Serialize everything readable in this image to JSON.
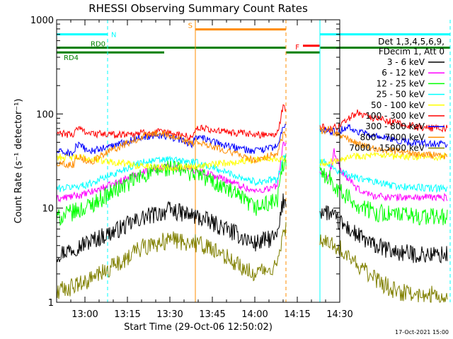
{
  "chart_data": {
    "type": "line",
    "title": "RHESSI Observing Summary Count Rates",
    "xlabel": "Start Time (29-Oct-06 12:50:02)",
    "ylabel": "Count Rate (s⁻¹ detector⁻¹)",
    "yscale": "log",
    "ylim": [
      1,
      1000
    ],
    "xlim": [
      "12:50",
      "14:30"
    ],
    "x_ticks": [
      "13:00",
      "13:15",
      "13:30",
      "13:45",
      "14:00",
      "14:15",
      "14:30"
    ],
    "y_ticks": [
      "1",
      "10",
      "100",
      "1000"
    ],
    "legend_header": [
      "Det 1,3,4,5,6,9,",
      "FDecim 1, Att 0"
    ],
    "legend_position": "right",
    "footer_date": "17-Oct-2021 15:00",
    "x_unit": "minutes after 12:50",
    "gaps": [
      [
        81,
        93
      ],
      [
        139,
        148
      ]
    ],
    "series": [
      {
        "name": "3 - 6 keV",
        "color": "#000000",
        "points": [
          [
            0,
            3.2
          ],
          [
            10,
            4.2
          ],
          [
            20,
            5.6
          ],
          [
            30,
            7.8
          ],
          [
            40,
            9.5
          ],
          [
            50,
            8.0
          ],
          [
            60,
            6.0
          ],
          [
            70,
            4.2
          ],
          [
            78,
            5.0
          ],
          [
            80,
            12.0
          ],
          [
            96,
            9.0
          ],
          [
            100,
            7.0
          ],
          [
            106,
            5.2
          ],
          [
            112,
            4.0
          ],
          [
            120,
            3.4
          ],
          [
            128,
            3.2
          ],
          [
            138,
            3.2
          ]
        ]
      },
      {
        "name": "6 - 12 keV",
        "color": "#ff00ff",
        "points": [
          [
            0,
            12.5
          ],
          [
            10,
            14.0
          ],
          [
            20,
            18.0
          ],
          [
            30,
            24.0
          ],
          [
            40,
            28.0
          ],
          [
            50,
            25.0
          ],
          [
            60,
            20.0
          ],
          [
            70,
            15.0
          ],
          [
            78,
            17.0
          ],
          [
            80,
            50.0
          ],
          [
            96,
            20.0
          ],
          [
            98,
            40.0
          ],
          [
            100,
            26.0
          ],
          [
            106,
            16.0
          ],
          [
            112,
            13.5
          ],
          [
            120,
            13.0
          ],
          [
            128,
            13.0
          ],
          [
            138,
            13.0
          ]
        ]
      },
      {
        "name": "12 - 25 keV",
        "color": "#00ff00",
        "points": [
          [
            0,
            7.8
          ],
          [
            10,
            10.0
          ],
          [
            20,
            15.0
          ],
          [
            30,
            22.0
          ],
          [
            40,
            27.0
          ],
          [
            50,
            23.0
          ],
          [
            60,
            16.0
          ],
          [
            70,
            10.0
          ],
          [
            78,
            12.0
          ],
          [
            80,
            30.0
          ],
          [
            96,
            22.0
          ],
          [
            100,
            15.0
          ],
          [
            106,
            11.0
          ],
          [
            112,
            9.0
          ],
          [
            120,
            8.5
          ],
          [
            128,
            8.2
          ],
          [
            138,
            8.0
          ]
        ]
      },
      {
        "name": "25 - 50 keV",
        "color": "#00ffff",
        "points": [
          [
            0,
            16.0
          ],
          [
            10,
            17.5
          ],
          [
            20,
            23.0
          ],
          [
            30,
            31.0
          ],
          [
            40,
            33.0
          ],
          [
            50,
            30.0
          ],
          [
            60,
            24.0
          ],
          [
            70,
            19.0
          ],
          [
            78,
            20.0
          ],
          [
            80,
            35.0
          ],
          [
            96,
            30.0
          ],
          [
            100,
            24.0
          ],
          [
            106,
            21.0
          ],
          [
            112,
            19.0
          ],
          [
            120,
            17.0
          ],
          [
            128,
            16.5
          ],
          [
            138,
            16.0
          ]
        ]
      },
      {
        "name": "50 - 100 keV",
        "color": "#ffff00",
        "points": [
          [
            0,
            35.0
          ],
          [
            10,
            34.0
          ],
          [
            20,
            31.0
          ],
          [
            30,
            28.0
          ],
          [
            40,
            27.0
          ],
          [
            50,
            28.0
          ],
          [
            60,
            30.0
          ],
          [
            70,
            33.0
          ],
          [
            80,
            34.0
          ],
          [
            96,
            30.0
          ],
          [
            100,
            34.0
          ],
          [
            106,
            36.0
          ],
          [
            112,
            36.0
          ],
          [
            120,
            35.0
          ],
          [
            128,
            35.0
          ],
          [
            138,
            35.0
          ]
        ]
      },
      {
        "name": "100 - 300 keV",
        "color": "#ff0000",
        "points": [
          [
            0,
            62.0
          ],
          [
            6,
            60.0
          ],
          [
            7,
            72.0
          ],
          [
            12,
            62.0
          ],
          [
            20,
            60.0
          ],
          [
            30,
            63.0
          ],
          [
            36,
            64.0
          ],
          [
            42,
            61.0
          ],
          [
            48,
            56.0
          ],
          [
            49,
            72.0
          ],
          [
            60,
            64.0
          ],
          [
            70,
            60.0
          ],
          [
            78,
            62.0
          ],
          [
            80,
            120.0
          ],
          [
            96,
            68.0
          ],
          [
            100,
            75.0
          ],
          [
            106,
            105.0
          ],
          [
            112,
            90.0
          ],
          [
            120,
            80.0
          ],
          [
            128,
            72.0
          ],
          [
            138,
            70.0
          ]
        ]
      },
      {
        "name": "300 - 800 keV",
        "color": "#0000ff",
        "points": [
          [
            0,
            40.0
          ],
          [
            6,
            38.0
          ],
          [
            7,
            47.0
          ],
          [
            12,
            40.0
          ],
          [
            20,
            46.0
          ],
          [
            30,
            57.0
          ],
          [
            36,
            60.0
          ],
          [
            42,
            55.0
          ],
          [
            48,
            48.0
          ],
          [
            49,
            58.0
          ],
          [
            60,
            46.0
          ],
          [
            70,
            40.0
          ],
          [
            78,
            45.0
          ],
          [
            80,
            75.0
          ],
          [
            96,
            65.0
          ],
          [
            100,
            66.0
          ],
          [
            103,
            75.0
          ],
          [
            106,
            65.0
          ],
          [
            112,
            58.0
          ],
          [
            120,
            52.0
          ],
          [
            128,
            49.0
          ],
          [
            138,
            48.0
          ]
        ]
      },
      {
        "name": "800 - 7000 keV",
        "color": "#ff8c00",
        "points": [
          [
            0,
            30.0
          ],
          [
            6,
            29.0
          ],
          [
            7,
            36.0
          ],
          [
            12,
            31.0
          ],
          [
            20,
            42.0
          ],
          [
            30,
            57.0
          ],
          [
            36,
            63.0
          ],
          [
            42,
            58.0
          ],
          [
            48,
            48.0
          ],
          [
            49,
            52.0
          ],
          [
            60,
            41.0
          ],
          [
            70,
            32.0
          ],
          [
            78,
            38.0
          ],
          [
            80,
            60.0
          ],
          [
            96,
            68.0
          ],
          [
            102,
            56.0
          ],
          [
            106,
            48.0
          ],
          [
            112,
            43.0
          ],
          [
            120,
            40.0
          ],
          [
            128,
            37.0
          ],
          [
            138,
            36.0
          ]
        ]
      },
      {
        "name": "7000 - 15000 keV",
        "color": "#808000",
        "points": [
          [
            0,
            1.3
          ],
          [
            10,
            1.6
          ],
          [
            20,
            2.4
          ],
          [
            30,
            3.8
          ],
          [
            40,
            4.6
          ],
          [
            50,
            4.2
          ],
          [
            60,
            3.0
          ],
          [
            70,
            2.0
          ],
          [
            78,
            2.4
          ],
          [
            80,
            6.0
          ],
          [
            96,
            4.5
          ],
          [
            100,
            3.8
          ],
          [
            106,
            2.6
          ],
          [
            112,
            1.8
          ],
          [
            120,
            1.3
          ],
          [
            128,
            1.2
          ],
          [
            138,
            1.2
          ]
        ]
      }
    ],
    "annotations": [
      {
        "label": "N",
        "color": "#00ffff",
        "segments": [
          [
            0,
            18
          ],
          [
            93,
            139
          ]
        ],
        "level": 700
      },
      {
        "label": "S",
        "color": "#ff8c00",
        "segments": [
          [
            49,
            81
          ]
        ],
        "level": 790
      },
      {
        "label": "F",
        "color": "#ff0000",
        "segments": [
          [
            87,
            93
          ]
        ],
        "level": 530
      },
      {
        "label": "RD0",
        "color": "#008000",
        "segments": [
          [
            0,
            81
          ],
          [
            93,
            139
          ]
        ],
        "level": 505
      },
      {
        "label": "RD4",
        "color": "#008000",
        "segments": [
          [
            0,
            38
          ],
          [
            81,
            93
          ]
        ],
        "level": 450
      }
    ],
    "markers": [
      {
        "x": 18,
        "color": "#00ffff",
        "style": "dashed"
      },
      {
        "x": 49,
        "color": "#ff8c00",
        "style": "solid"
      },
      {
        "x": 81,
        "color": "#ff8c00",
        "style": "dashed"
      },
      {
        "x": 93,
        "color": "#00ffff",
        "style": "solid"
      },
      {
        "x": 139,
        "color": "#00ffff",
        "style": "dashed"
      }
    ]
  }
}
